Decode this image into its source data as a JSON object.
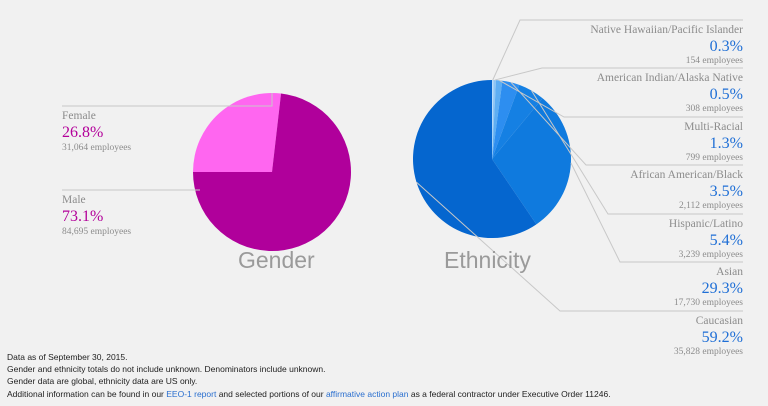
{
  "colors": {
    "female": "#ff66f0",
    "male": "#b0009b",
    "line": "#c8c8c8",
    "eth": [
      "#b9dcfb",
      "#8cc5f6",
      "#5eaef3",
      "#2d8ef0",
      "#1580e3",
      "#0f7ade",
      "#0566cf"
    ]
  },
  "gender": {
    "title": "Gender",
    "items": [
      {
        "label": "Female",
        "percent": "26.8%",
        "employees": "31,064 employees"
      },
      {
        "label": "Male",
        "percent": "73.1%",
        "employees": "84,695 employees"
      }
    ]
  },
  "ethnicity": {
    "title": "Ethnicity",
    "items": [
      {
        "label": "Native Hawaiian/Pacific Islander",
        "percent": "0.3%",
        "employees": "154 employees"
      },
      {
        "label": "American Indian/Alaska Native",
        "percent": "0.5%",
        "employees": "308 employees"
      },
      {
        "label": "Multi-Racial",
        "percent": "1.3%",
        "employees": "799 employees"
      },
      {
        "label": "African American/Black",
        "percent": "3.5%",
        "employees": "2,112 employees"
      },
      {
        "label": "Hispanic/Latino",
        "percent": "5.4%",
        "employees": "3,239 employees"
      },
      {
        "label": "Asian",
        "percent": "29.3%",
        "employees": "17,730 employees"
      },
      {
        "label": "Caucasian",
        "percent": "59.2%",
        "employees": "35,828 employees"
      }
    ]
  },
  "notes": {
    "line1": "Data as of September 30, 2015.",
    "line2": "Gender and ethnicity totals do not include unknown. Denominators include unknown.",
    "line3": "Gender data are global, ethnicity data are US only.",
    "line4_a": "Additional information can be found in our ",
    "line4_link1": "EEO-1 report",
    "line4_b": " and selected portions of our ",
    "line4_link2": "affirmative action plan",
    "line4_c": " as a federal contractor under Executive Order 11246."
  },
  "chart_data": [
    {
      "type": "pie",
      "title": "Gender",
      "categories": [
        "Female",
        "Male"
      ],
      "values": [
        26.8,
        73.1
      ]
    },
    {
      "type": "pie",
      "title": "Ethnicity",
      "categories": [
        "Native Hawaiian/Pacific Islander",
        "American Indian/Alaska Native",
        "Multi-Racial",
        "African American/Black",
        "Hispanic/Latino",
        "Asian",
        "Caucasian"
      ],
      "values": [
        0.3,
        0.5,
        1.3,
        3.5,
        5.4,
        29.3,
        59.2
      ]
    }
  ]
}
